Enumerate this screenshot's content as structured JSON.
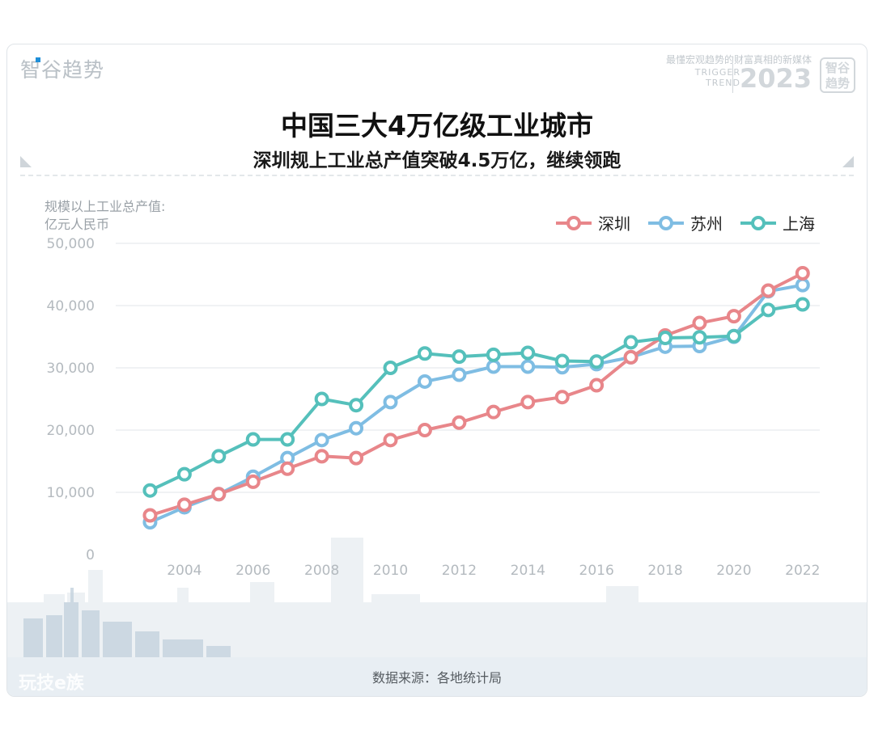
{
  "header": {
    "brand_left": "智谷趋势",
    "slogan": "最懂宏观趋势的财富真相的新媒体",
    "trigger_line1": "TRIGGER",
    "trigger_line2": "TREND",
    "year": "2023",
    "seal_line1": "智谷",
    "seal_line2": "趋势"
  },
  "colors": {
    "shenzhen": "#e8868a",
    "suzhou": "#7fbde3",
    "shanghai": "#55c0bb"
  },
  "chart_data": {
    "type": "line",
    "title": "中国三大4万亿级工业城市",
    "subtitle": "深圳规上工业总产值突破4.5万亿，继续领跑",
    "ylabel_line1": "规模以上工业总产值:",
    "ylabel_line2": "亿元人民币",
    "ylim": [
      0,
      50000
    ],
    "yticks": [
      "0",
      "10,000",
      "20,000",
      "30,000",
      "40,000",
      "50,000"
    ],
    "ytick_values": [
      0,
      10000,
      20000,
      30000,
      40000,
      50000
    ],
    "xticks": [
      "2004",
      "2006",
      "2008",
      "2010",
      "2012",
      "2014",
      "2016",
      "2018",
      "2020",
      "2022"
    ],
    "xtick_values": [
      2004,
      2006,
      2008,
      2010,
      2012,
      2014,
      2016,
      2018,
      2020,
      2022
    ],
    "xlim": [
      2002.0,
      2022.5
    ],
    "grid": true,
    "legend_position": "top-right",
    "x": [
      2003,
      2004,
      2005,
      2006,
      2007,
      2008,
      2009,
      2010,
      2011,
      2012,
      2013,
      2014,
      2015,
      2016,
      2017,
      2018,
      2019,
      2020,
      2021,
      2022
    ],
    "series": [
      {
        "name": "深圳",
        "key": "shenzhen",
        "values": [
          6300,
          8000,
          9700,
          11700,
          13800,
          15800,
          15500,
          18400,
          20000,
          21200,
          22900,
          24500,
          25300,
          27200,
          31700,
          35200,
          37200,
          38300,
          42400,
          45200
        ]
      },
      {
        "name": "苏州",
        "key": "suzhou",
        "values": [
          5200,
          7600,
          9700,
          12500,
          15500,
          18400,
          20300,
          24500,
          27800,
          28900,
          30200,
          30200,
          30100,
          30600,
          31700,
          33400,
          33500,
          35000,
          42300,
          43300
        ]
      },
      {
        "name": "上海",
        "key": "shanghai",
        "values": [
          10300,
          12900,
          15800,
          18500,
          18500,
          25000,
          24000,
          30000,
          32300,
          31800,
          32100,
          32400,
          31100,
          31000,
          34100,
          34800,
          34900,
          35100,
          39300,
          40200
        ]
      }
    ]
  },
  "footer": {
    "source": "数据来源：各地统计局",
    "logo": "玩技e族"
  }
}
